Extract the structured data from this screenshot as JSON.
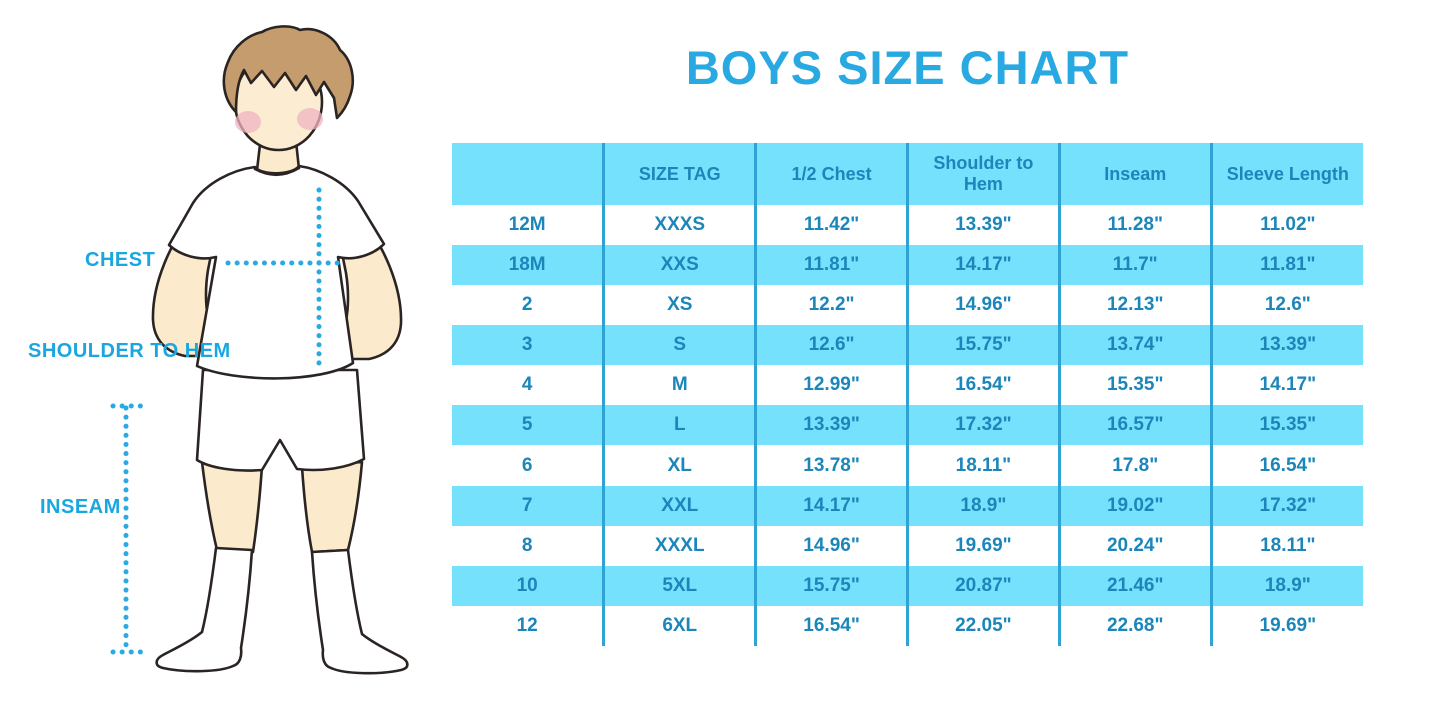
{
  "title": "BOYS SIZE CHART",
  "figure": {
    "labels": {
      "chest": "CHEST",
      "shoulder_to_hem": "SHOULDER TO HEM",
      "inseam": "INSEAM"
    }
  },
  "colors": {
    "title_blue": "#29A9E1",
    "label_blue": "#1AA7E0",
    "dotted_line_blue": "#29ABE2",
    "table_header_bg": "#76E1FD",
    "table_alt_row_bg": "#76E1FD",
    "table_divider": "#2FA3D3",
    "table_text": "#1C86BA",
    "skin": "#FBEACB",
    "hair": "#C49C6E",
    "cheek": "#EFB3C2",
    "outline": "#2A2422"
  },
  "chart_data": {
    "type": "table",
    "title": "BOYS SIZE CHART",
    "columns": [
      "",
      "SIZE TAG",
      "1/2 Chest",
      "Shoulder to Hem",
      "Inseam",
      "Sleeve Length"
    ],
    "rows": [
      [
        "12M",
        "XXXS",
        "11.42\"",
        "13.39\"",
        "11.28\"",
        "11.02\""
      ],
      [
        "18M",
        "XXS",
        "11.81\"",
        "14.17\"",
        "11.7\"",
        "11.81\""
      ],
      [
        "2",
        "XS",
        "12.2\"",
        "14.96\"",
        "12.13\"",
        "12.6\""
      ],
      [
        "3",
        "S",
        "12.6\"",
        "15.75\"",
        "13.74\"",
        "13.39\""
      ],
      [
        "4",
        "M",
        "12.99\"",
        "16.54\"",
        "15.35\"",
        "14.17\""
      ],
      [
        "5",
        "L",
        "13.39\"",
        "17.32\"",
        "16.57\"",
        "15.35\""
      ],
      [
        "6",
        "XL",
        "13.78\"",
        "18.11\"",
        "17.8\"",
        "16.54\""
      ],
      [
        "7",
        "XXL",
        "14.17\"",
        "18.9\"",
        "19.02\"",
        "17.32\""
      ],
      [
        "8",
        "XXXL",
        "14.96\"",
        "19.69\"",
        "20.24\"",
        "18.11\""
      ],
      [
        "10",
        "5XL",
        "15.75\"",
        "20.87\"",
        "21.46\"",
        "18.9\""
      ],
      [
        "12",
        "6XL",
        "16.54\"",
        "22.05\"",
        "22.68\"",
        "19.69\""
      ]
    ],
    "legend_position": "none",
    "grid": "vertical-dividers-only",
    "row_striping": "white / light-blue alternating"
  }
}
